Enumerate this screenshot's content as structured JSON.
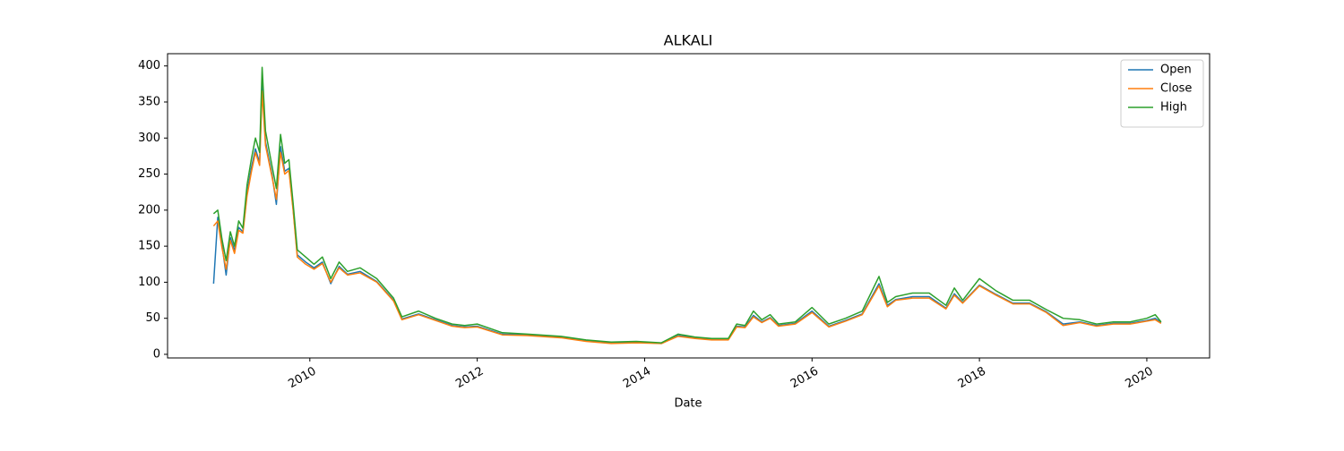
{
  "chart_data": {
    "type": "line",
    "title": "ALKALI",
    "xlabel": "Date",
    "x": [
      2008.85,
      2008.9,
      2008.95,
      2009.0,
      2009.05,
      2009.1,
      2009.15,
      2009.2,
      2009.25,
      2009.3,
      2009.35,
      2009.4,
      2009.43,
      2009.47,
      2009.55,
      2009.6,
      2009.65,
      2009.7,
      2009.75,
      2009.8,
      2009.85,
      2009.95,
      2010.05,
      2010.15,
      2010.25,
      2010.35,
      2010.45,
      2010.6,
      2010.8,
      2011.0,
      2011.1,
      2011.3,
      2011.5,
      2011.7,
      2011.85,
      2012.0,
      2012.3,
      2012.6,
      2013.0,
      2013.3,
      2013.6,
      2013.9,
      2014.2,
      2014.4,
      2014.6,
      2014.8,
      2015.0,
      2015.1,
      2015.2,
      2015.3,
      2015.4,
      2015.5,
      2015.6,
      2015.8,
      2016.0,
      2016.2,
      2016.4,
      2016.6,
      2016.8,
      2016.9,
      2017.0,
      2017.2,
      2017.4,
      2017.6,
      2017.7,
      2017.8,
      2018.0,
      2018.2,
      2018.4,
      2018.6,
      2018.8,
      2019.0,
      2019.2,
      2019.4,
      2019.6,
      2019.8,
      2020.0,
      2020.1,
      2020.17
    ],
    "series": [
      {
        "name": "Open",
        "color": "#1f77b4",
        "values": [
          98,
          190,
          152,
          110,
          162,
          144,
          176,
          170,
          224,
          258,
          285,
          266,
          375,
          295,
          248,
          208,
          288,
          254,
          258,
          202,
          138,
          128,
          120,
          128,
          98,
          122,
          111,
          115,
          101,
          75,
          49,
          56,
          48,
          40,
          38,
          39,
          28,
          27,
          24,
          19,
          16,
          17,
          15,
          26,
          23,
          21,
          21,
          39,
          38,
          54,
          45,
          51,
          40,
          43,
          60,
          39,
          47,
          56,
          98,
          68,
          76,
          80,
          80,
          64,
          84,
          72,
          96,
          83,
          71,
          71,
          59,
          42,
          45,
          40,
          43,
          43,
          47,
          50,
          44
        ]
      },
      {
        "name": "Close",
        "color": "#ff7f0e",
        "values": [
          178,
          185,
          148,
          118,
          158,
          140,
          172,
          168,
          220,
          252,
          280,
          262,
          365,
          290,
          245,
          215,
          280,
          250,
          255,
          200,
          135,
          125,
          118,
          126,
          100,
          120,
          110,
          113,
          100,
          74,
          48,
          55,
          47,
          39,
          37,
          38,
          27,
          26,
          23,
          18,
          15,
          16,
          15,
          25,
          22,
          20,
          20,
          38,
          37,
          52,
          44,
          50,
          39,
          42,
          58,
          38,
          46,
          55,
          95,
          66,
          75,
          78,
          78,
          63,
          82,
          71,
          95,
          82,
          70,
          70,
          58,
          40,
          44,
          39,
          42,
          42,
          46,
          48,
          43
        ]
      },
      {
        "name": "High",
        "color": "#2ca02c",
        "values": [
          195,
          200,
          160,
          130,
          170,
          150,
          185,
          175,
          235,
          270,
          300,
          280,
          398,
          310,
          260,
          230,
          305,
          265,
          270,
          210,
          145,
          135,
          125,
          135,
          105,
          128,
          115,
          120,
          105,
          78,
          52,
          60,
          50,
          42,
          40,
          42,
          30,
          28,
          25,
          20,
          17,
          18,
          16,
          28,
          24,
          22,
          22,
          42,
          40,
          60,
          48,
          55,
          42,
          45,
          65,
          42,
          50,
          60,
          108,
          72,
          80,
          85,
          85,
          68,
          92,
          75,
          105,
          88,
          75,
          75,
          62,
          50,
          48,
          42,
          45,
          45,
          50,
          55,
          45
        ]
      }
    ],
    "xlim": [
      2008.3,
      2020.75
    ],
    "xticks": [
      2010,
      2012,
      2014,
      2016,
      2018,
      2020
    ],
    "ylim": [
      -5,
      417
    ],
    "yticks": [
      0,
      50,
      100,
      150,
      200,
      250,
      300,
      350,
      400
    ],
    "grid": false,
    "legend": "upper right"
  }
}
